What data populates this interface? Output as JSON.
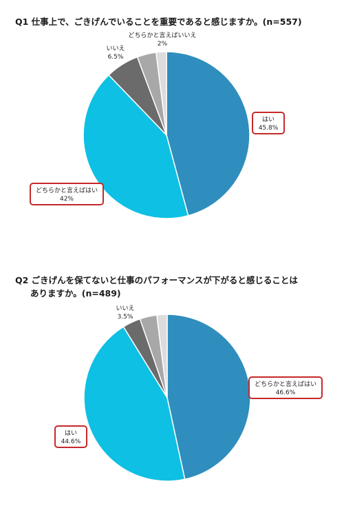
{
  "q1": {
    "title": "Q1 仕事上で、ごきげんでいることを重要であると感じますか。(n=557)"
  },
  "q2": {
    "title_line1": "Q2 ごきげんを保てないと仕事のパフォーマンスが下がると感じることは",
    "title_line2": "ありますか。(n=489)"
  },
  "chart_data": [
    {
      "type": "pie",
      "title": "Q1 仕事上で、ごきげんでいることを重要であると感じますか。(n=557)",
      "start": "12 o'clock, clockwise",
      "slices": [
        {
          "label": "はい",
          "value": 45.8,
          "value_label": "45.8%",
          "color": "#2f8ebd",
          "highlight": true
        },
        {
          "label": "どちらかと言えばはい",
          "value": 42,
          "value_label": "42%",
          "color": "#0ec0e3",
          "highlight": true
        },
        {
          "label": "いいえ",
          "value": 6.5,
          "value_label": "6.5%",
          "color": "#6b6b6b",
          "highlight": false
        },
        {
          "label": "",
          "value": 3.7,
          "value_label": "",
          "color": "#a8a8a8",
          "highlight": false
        },
        {
          "label": "どちらかと言えばいいえ",
          "value": 2,
          "value_label": "2%",
          "color": "#dcdcdc",
          "highlight": false
        }
      ]
    },
    {
      "type": "pie",
      "title": "Q2 ごきげんを保てないと仕事のパフォーマンスが下がると感じることはありますか。(n=489)",
      "start": "12 o'clock, clockwise",
      "slices": [
        {
          "label": "どちらかと言えばはい",
          "value": 46.6,
          "value_label": "46.6%",
          "color": "#2f8ebd",
          "highlight": true
        },
        {
          "label": "はい",
          "value": 44.6,
          "value_label": "44.6%",
          "color": "#0ec0e3",
          "highlight": true
        },
        {
          "label": "いいえ",
          "value": 3.5,
          "value_label": "3.5%",
          "color": "#6b6b6b",
          "highlight": false
        },
        {
          "label": "",
          "value": 3.3,
          "value_label": "",
          "color": "#a8a8a8",
          "highlight": false
        },
        {
          "label": "",
          "value": 2.0,
          "value_label": "",
          "color": "#dcdcdc",
          "highlight": false
        }
      ]
    }
  ]
}
